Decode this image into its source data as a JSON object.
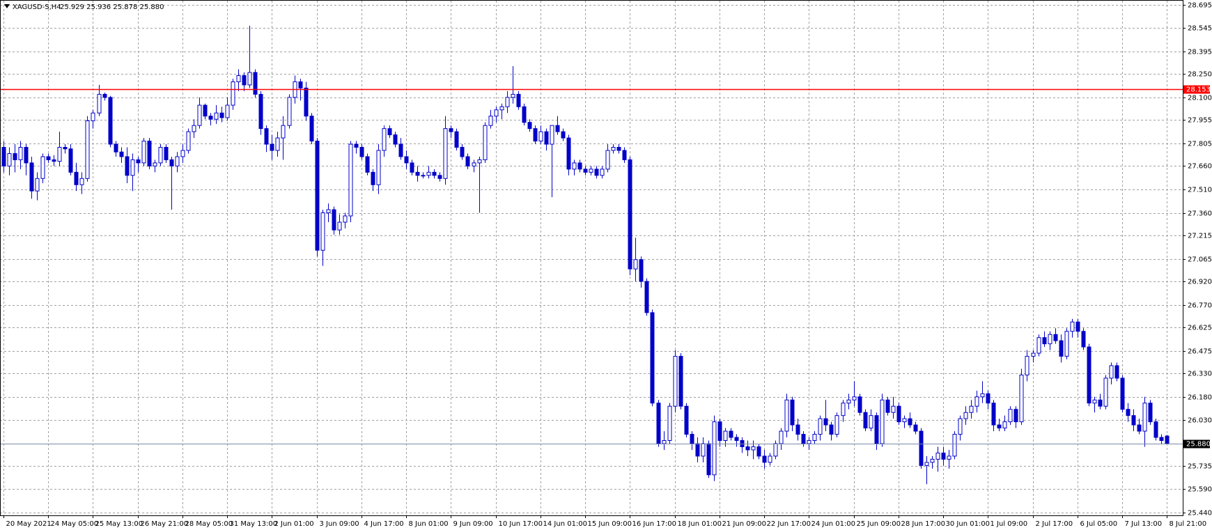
{
  "chart_data": {
    "type": "candlestick",
    "title": "XAGUSD-S,H4",
    "ohlc_text": "25.929 25.936 25.878 25.880",
    "color": "#0000c8",
    "grid": true,
    "categories": [
      "20 May 2021",
      null,
      null,
      null,
      null,
      null,
      null,
      null,
      "24 May 05:00",
      null,
      null,
      null,
      null,
      null,
      null,
      null,
      "25 May 13:00",
      null,
      null,
      null,
      null,
      null,
      null,
      null,
      "26 May 21:00",
      null,
      null,
      null,
      null,
      null,
      null,
      null,
      "28 May 05:00",
      null,
      null,
      null,
      null,
      null,
      null,
      null,
      "31 May 13:00",
      null,
      null,
      null,
      null,
      null,
      null,
      null,
      "2 Jun 01:00",
      null,
      null,
      null,
      null,
      null,
      null,
      null,
      "3 Jun 09:00",
      null,
      null,
      null,
      null,
      null,
      null,
      null,
      "4 Jun 17:00",
      null,
      null,
      null,
      null,
      null,
      null,
      null,
      "8 Jun 01:00",
      null,
      null,
      null,
      null,
      null,
      null,
      null,
      "9 Jun 09:00",
      null,
      null,
      null,
      null,
      null,
      null,
      null,
      "10 Jun 17:00",
      null,
      null,
      null,
      null,
      null,
      null,
      null,
      "14 Jun 01:00",
      null,
      null,
      null,
      null,
      null,
      null,
      null,
      "15 Jun 09:00",
      null,
      null,
      null,
      null,
      null,
      null,
      null,
      "16 Jun 17:00",
      null,
      null,
      null,
      null,
      null,
      null,
      null,
      "18 Jun 01:00",
      null,
      null,
      null,
      null,
      null,
      null,
      null,
      "21 Jun 09:00",
      null,
      null,
      null,
      null,
      null,
      null,
      null,
      "22 Jun 17:00",
      null,
      null,
      null,
      null,
      null,
      null,
      null,
      "24 Jun 01:00",
      null,
      null,
      null,
      null,
      null,
      null,
      null,
      "25 Jun 09:00",
      null,
      null,
      null,
      null,
      null,
      null,
      null,
      "28 Jun 17:00",
      null,
      null,
      null,
      null,
      null,
      null,
      null,
      "30 Jun 01:00",
      null,
      null,
      null,
      null,
      null,
      null,
      null,
      "1 Jul 09:00",
      null,
      null,
      null,
      null,
      null,
      null,
      null,
      "2 Jul 17:00",
      null,
      null,
      null,
      null,
      null,
      null,
      null,
      "6 Jul 05:00",
      null,
      null,
      null,
      null,
      null,
      null,
      null,
      "7 Jul 13:00",
      null,
      null,
      null,
      null,
      null,
      null,
      null,
      "8 Jul 21:00"
    ],
    "open": [
      27.78,
      27.66,
      27.74,
      27.7,
      27.78,
      27.68,
      27.5,
      27.58,
      27.72,
      27.7,
      27.69,
      27.78,
      27.77,
      27.62,
      27.54,
      27.58,
      27.95,
      28.0,
      28.12,
      28.1,
      27.8,
      27.75,
      27.72,
      27.6,
      27.7,
      27.68,
      27.82,
      27.66,
      27.68,
      27.78,
      27.7,
      27.66,
      27.72,
      27.76,
      27.88,
      27.92,
      28.05,
      27.98,
      27.96,
      28.0,
      27.97,
      28.05,
      28.2,
      28.24,
      28.18,
      28.26,
      28.12,
      27.9,
      27.8,
      27.76,
      27.84,
      27.92,
      28.1,
      28.2,
      28.16,
      27.98,
      27.82,
      27.12,
      27.36,
      27.38,
      27.25,
      27.3,
      27.34,
      27.8,
      27.78,
      27.72,
      27.62,
      27.54,
      27.76,
      27.9,
      27.86,
      27.8,
      27.72,
      27.68,
      27.62,
      27.6,
      27.6,
      27.62,
      27.6,
      27.58,
      27.9,
      27.88,
      27.78,
      27.72,
      27.66,
      27.68,
      27.7,
      27.92,
      27.98,
      28.02,
      28.04,
      28.1,
      28.12,
      28.04,
      27.94,
      27.9,
      27.82,
      27.88,
      27.8,
      27.92,
      27.88,
      27.84,
      27.64,
      27.68,
      27.64,
      27.62,
      27.64,
      27.6,
      27.64,
      27.76,
      27.78,
      27.76,
      27.7,
      27.0,
      27.06,
      26.92,
      26.72,
      26.14,
      25.88,
      25.9,
      26.12,
      26.44,
      26.12,
      25.94,
      25.88,
      25.8,
      25.88,
      25.68,
      26.02,
      25.9,
      25.96,
      25.92,
      25.9,
      25.86,
      25.84,
      25.86,
      25.8,
      25.76,
      25.8,
      25.88,
      25.96,
      26.16,
      26.0,
      25.94,
      25.88,
      25.9,
      25.94,
      26.04,
      26.0,
      25.94,
      26.06,
      26.14,
      26.16,
      26.18,
      26.08,
      25.98,
      26.06,
      25.88,
      26.16,
      26.08,
      26.12,
      26.02,
      26.04,
      26.0,
      25.96,
      25.74,
      25.76,
      25.78,
      25.82,
      25.78,
      25.8,
      25.94,
      26.04,
      26.08,
      26.12,
      26.18,
      26.2,
      26.14,
      26.0,
      25.98,
      26.02,
      26.1,
      26.02,
      26.32,
      26.44,
      26.46,
      26.56,
      26.52,
      26.58,
      26.54,
      26.44,
      26.6,
      26.66,
      26.6,
      26.5,
      26.14,
      26.16,
      26.12,
      26.3,
      26.38,
      26.3,
      26.1,
      26.06,
      26.0,
      25.96,
      26.14,
      26.02,
      25.92,
      25.929
    ],
    "high": [
      27.82,
      27.78,
      27.8,
      27.82,
      27.8,
      27.72,
      27.62,
      27.74,
      27.74,
      27.73,
      27.88,
      27.8,
      27.8,
      27.68,
      27.62,
      27.98,
      28.02,
      28.18,
      28.13,
      28.11,
      27.82,
      27.78,
      27.78,
      27.74,
      27.72,
      27.84,
      27.84,
      27.7,
      27.8,
      27.8,
      27.72,
      27.75,
      27.8,
      27.9,
      27.96,
      28.1,
      28.06,
      28.0,
      28.05,
      28.04,
      28.1,
      28.22,
      28.28,
      28.26,
      28.56,
      28.28,
      28.14,
      27.92,
      27.86,
      27.88,
      27.98,
      28.12,
      28.24,
      28.22,
      28.2,
      28.0,
      27.84,
      27.38,
      27.42,
      27.4,
      27.35,
      27.36,
      27.82,
      27.82,
      27.8,
      27.74,
      27.64,
      27.8,
      27.92,
      27.92,
      27.88,
      27.84,
      27.76,
      27.7,
      27.66,
      27.62,
      27.66,
      27.64,
      27.62,
      27.98,
      27.92,
      27.9,
      27.8,
      27.74,
      27.7,
      27.72,
      27.94,
      28.02,
      28.04,
      28.06,
      28.14,
      28.3,
      28.14,
      28.06,
      27.96,
      27.92,
      27.92,
      27.9,
      27.9,
      27.98,
      27.9,
      27.86,
      27.7,
      27.7,
      27.66,
      27.66,
      27.66,
      27.66,
      27.8,
      27.8,
      27.8,
      27.78,
      27.72,
      27.2,
      27.08,
      26.94,
      26.74,
      26.16,
      25.96,
      26.14,
      26.48,
      26.46,
      26.14,
      25.96,
      25.92,
      25.92,
      25.9,
      26.06,
      26.04,
      25.98,
      25.98,
      25.94,
      25.92,
      25.9,
      25.9,
      25.88,
      25.84,
      25.82,
      25.9,
      25.98,
      26.2,
      26.18,
      26.04,
      25.96,
      25.92,
      25.96,
      26.06,
      26.16,
      26.02,
      26.08,
      26.16,
      26.2,
      26.28,
      26.2,
      26.1,
      26.1,
      26.08,
      26.2,
      26.18,
      26.18,
      26.14,
      26.06,
      26.08,
      26.02,
      25.98,
      25.8,
      25.8,
      25.86,
      25.86,
      25.84,
      25.96,
      26.06,
      26.12,
      26.16,
      26.22,
      26.28,
      26.22,
      26.16,
      26.04,
      26.06,
      26.12,
      26.12,
      26.36,
      26.48,
      26.48,
      26.58,
      26.6,
      26.6,
      26.62,
      26.58,
      26.62,
      26.68,
      26.68,
      26.62,
      26.52,
      26.18,
      26.2,
      26.32,
      26.4,
      26.4,
      26.32,
      26.14,
      26.1,
      26.04,
      26.18,
      26.16,
      26.04,
      25.94,
      25.936
    ],
    "low": [
      27.62,
      27.6,
      27.62,
      27.64,
      27.6,
      27.45,
      27.44,
      27.55,
      27.68,
      27.66,
      27.66,
      27.74,
      27.6,
      27.5,
      27.48,
      27.56,
      27.9,
      27.98,
      28.08,
      27.78,
      27.72,
      27.68,
      27.55,
      27.5,
      27.62,
      27.66,
      27.64,
      27.62,
      27.66,
      27.68,
      27.38,
      27.62,
      27.68,
      27.74,
      27.84,
      27.9,
      27.96,
      27.92,
      27.93,
      27.94,
      27.95,
      28.02,
      28.14,
      28.14,
      28.16,
      28.1,
      27.86,
      27.75,
      27.7,
      27.72,
      27.7,
      27.9,
      28.06,
      28.08,
      27.95,
      27.8,
      27.08,
      27.02,
      27.3,
      27.22,
      27.22,
      27.26,
      27.3,
      27.74,
      27.7,
      27.6,
      27.5,
      27.48,
      27.72,
      27.84,
      27.78,
      27.7,
      27.64,
      27.6,
      27.56,
      27.58,
      27.58,
      27.58,
      27.56,
      27.54,
      27.84,
      27.76,
      27.7,
      27.64,
      27.62,
      27.36,
      27.68,
      27.9,
      27.94,
      27.96,
      28.0,
      28.06,
      28.02,
      27.92,
      27.88,
      27.8,
      27.8,
      27.76,
      27.46,
      27.86,
      27.82,
      27.6,
      27.6,
      27.62,
      27.6,
      27.6,
      27.58,
      27.58,
      27.62,
      27.74,
      27.74,
      27.68,
      26.96,
      26.92,
      26.88,
      26.7,
      26.12,
      25.86,
      25.84,
      25.88,
      26.08,
      26.1,
      25.92,
      25.84,
      25.76,
      25.76,
      25.66,
      25.64,
      25.86,
      25.86,
      25.9,
      25.86,
      25.82,
      25.8,
      25.78,
      25.78,
      25.72,
      25.74,
      25.78,
      25.84,
      25.92,
      25.96,
      25.9,
      25.86,
      25.84,
      25.88,
      25.9,
      25.96,
      25.9,
      25.92,
      26.02,
      26.1,
      26.12,
      26.06,
      25.96,
      25.96,
      25.84,
      25.86,
      26.06,
      26.04,
      26.0,
      25.98,
      25.98,
      25.94,
      25.72,
      25.62,
      25.72,
      25.7,
      25.74,
      25.72,
      25.78,
      25.9,
      26.0,
      26.04,
      26.08,
      26.14,
      26.1,
      25.96,
      25.96,
      25.96,
      26.0,
      25.98,
      26.0,
      26.28,
      26.4,
      26.44,
      26.5,
      26.48,
      26.52,
      26.4,
      26.42,
      26.56,
      26.56,
      26.48,
      26.12,
      26.08,
      26.1,
      26.1,
      26.26,
      26.28,
      26.08,
      26.02,
      25.96,
      25.94,
      25.86,
      26.0,
      25.9,
      25.88,
      25.878
    ],
    "close": [
      27.66,
      27.74,
      27.7,
      27.78,
      27.68,
      27.5,
      27.58,
      27.72,
      27.7,
      27.69,
      27.78,
      27.77,
      27.62,
      27.54,
      27.58,
      27.95,
      28.0,
      28.12,
      28.1,
      27.8,
      27.75,
      27.72,
      27.6,
      27.7,
      27.68,
      27.82,
      27.66,
      27.68,
      27.78,
      27.7,
      27.66,
      27.72,
      27.76,
      27.88,
      27.92,
      28.05,
      27.98,
      27.96,
      28.0,
      27.97,
      28.05,
      28.2,
      28.24,
      28.18,
      28.26,
      28.12,
      27.9,
      27.8,
      27.76,
      27.84,
      27.92,
      28.1,
      28.2,
      28.16,
      27.98,
      27.82,
      27.12,
      27.36,
      27.38,
      27.25,
      27.3,
      27.34,
      27.8,
      27.78,
      27.72,
      27.62,
      27.54,
      27.76,
      27.9,
      27.86,
      27.8,
      27.72,
      27.68,
      27.62,
      27.6,
      27.6,
      27.62,
      27.6,
      27.58,
      27.9,
      27.88,
      27.78,
      27.72,
      27.66,
      27.68,
      27.7,
      27.92,
      27.98,
      28.02,
      28.04,
      28.1,
      28.12,
      28.04,
      27.94,
      27.9,
      27.82,
      27.88,
      27.8,
      27.92,
      27.88,
      27.84,
      27.64,
      27.68,
      27.64,
      27.62,
      27.64,
      27.6,
      27.64,
      27.76,
      27.78,
      27.76,
      27.7,
      27.0,
      27.06,
      26.92,
      26.72,
      26.14,
      25.88,
      25.9,
      26.12,
      26.44,
      26.12,
      25.94,
      25.88,
      25.8,
      25.88,
      25.68,
      26.02,
      25.9,
      25.96,
      25.92,
      25.9,
      25.86,
      25.84,
      25.86,
      25.8,
      25.76,
      25.8,
      25.88,
      25.96,
      26.16,
      26.0,
      25.94,
      25.88,
      25.9,
      25.94,
      26.04,
      26.0,
      25.94,
      26.06,
      26.14,
      26.16,
      26.18,
      26.08,
      25.98,
      26.06,
      25.88,
      26.16,
      26.08,
      26.12,
      26.02,
      26.04,
      26.0,
      25.96,
      25.74,
      25.76,
      25.78,
      25.82,
      25.78,
      25.8,
      25.94,
      26.04,
      26.08,
      26.12,
      26.18,
      26.2,
      26.14,
      26.0,
      25.98,
      26.02,
      26.1,
      26.02,
      26.32,
      26.44,
      26.46,
      26.56,
      26.52,
      26.58,
      26.54,
      26.44,
      26.6,
      26.66,
      26.6,
      26.5,
      26.14,
      26.16,
      26.12,
      26.3,
      26.38,
      26.3,
      26.1,
      26.06,
      26.0,
      25.96,
      26.14,
      26.02,
      25.92,
      25.9,
      25.88
    ],
    "ylim": [
      25.42,
      28.72
    ],
    "yticks": [
      28.695,
      28.545,
      28.395,
      {
        "value": 28.25,
        "label": "28.250"
      },
      {
        "value": 28.1,
        "label": "28.100"
      },
      27.955,
      27.805,
      {
        "value": 27.66,
        "label": "27.660"
      },
      {
        "value": 27.51,
        "label": "27.510"
      },
      {
        "value": 27.36,
        "label": "27.360"
      },
      27.215,
      27.065,
      {
        "value": 26.92,
        "label": "26.920"
      },
      {
        "value": 26.77,
        "label": "26.770"
      },
      26.625,
      26.475,
      {
        "value": 26.33,
        "label": "26.330"
      },
      {
        "value": 26.18,
        "label": "26.180"
      },
      {
        "value": 26.03,
        "label": "26.030"
      },
      25.735,
      {
        "value": 25.59,
        "label": "25.590"
      },
      {
        "value": 25.44,
        "label": "25.440"
      }
    ],
    "hlines": [
      {
        "value": 28.153,
        "label": "28.153",
        "color": "#ff0000",
        "label_bg": "#ff0000"
      },
      {
        "value": 25.88,
        "label": "25.880",
        "color": "#7a8aa8",
        "label_bg": "#000000"
      }
    ]
  }
}
